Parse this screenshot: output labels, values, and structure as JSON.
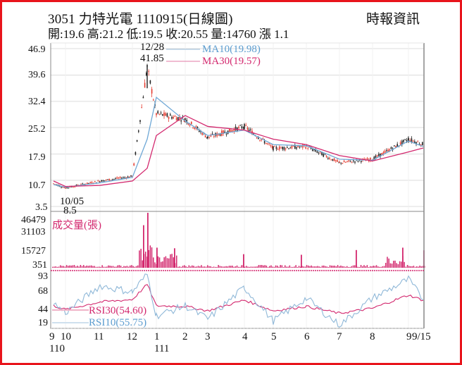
{
  "header": {
    "title": "3051  力特光電 1110915(日線圖)",
    "source": "時報資訊",
    "stats": "開:19.6 高:21.2 低:19.5 收:20.55 量:14760 漲 1.1"
  },
  "colors": {
    "border": "#e8141c",
    "ma10": "#6fa8d6",
    "ma30": "#d3286e",
    "volume": "#d3286e",
    "rsi30": "#d3286e",
    "rsi10": "#8fb8d8",
    "up_candle": "#e53a2e",
    "down_candle": "#222222",
    "grid": "#dcdcdc",
    "axis": "#888888"
  },
  "chart_data": [
    {
      "type": "candlestick",
      "title": "3051 力特光電 1110915(日線圖)",
      "ylabel": "",
      "y_ticks": [
        46.9,
        39.6,
        32.4,
        25.2,
        17.9,
        10.7,
        3.5
      ],
      "ylim": [
        3.5,
        46.9
      ],
      "grid": true,
      "x_ticks": [
        "9",
        "10",
        "11",
        "12",
        "1",
        "2",
        "3",
        "4",
        "5",
        "6",
        "7",
        "8",
        "9",
        "9/15"
      ],
      "x_subticks": {
        "110": "9",
        "111": "1"
      },
      "annotations": [
        {
          "label": "12/28",
          "value": "41.85",
          "type": "high"
        },
        {
          "label": "10/05",
          "value": "8.5",
          "type": "low"
        }
      ],
      "legend": [
        {
          "name": "MA10",
          "value": "19.98",
          "label": "MA10(19.98)"
        },
        {
          "name": "MA30",
          "value": "19.57",
          "label": "MA30(19.57)"
        }
      ],
      "approx_close_by_month": {
        "x": [
          "9",
          "10",
          "11",
          "12",
          "12/28",
          "1",
          "2",
          "3",
          "4",
          "5",
          "6",
          "7",
          "8",
          "9",
          "9/15"
        ],
        "close": [
          9.8,
          8.6,
          10.5,
          11.8,
          41.85,
          29.0,
          27.5,
          22.5,
          25.5,
          19.5,
          20.0,
          15.5,
          16.5,
          22.0,
          20.55
        ]
      },
      "series": [
        {
          "name": "MA10",
          "x": [
            "9",
            "10",
            "11",
            "12",
            "12/28",
            "1",
            "2",
            "3",
            "4",
            "5",
            "6",
            "7",
            "8",
            "9",
            "9/15"
          ],
          "values": [
            9.5,
            8.8,
            10.0,
            11.5,
            22.0,
            33.5,
            27.0,
            23.0,
            24.5,
            20.5,
            20.2,
            16.5,
            16.2,
            21.5,
            19.98
          ]
        },
        {
          "name": "MA30",
          "x": [
            "9",
            "10",
            "11",
            "12",
            "12/28",
            "1",
            "2",
            "3",
            "4",
            "5",
            "6",
            "7",
            "8",
            "9",
            "9/15"
          ],
          "values": [
            10.5,
            9.0,
            9.3,
            10.5,
            14.0,
            23.0,
            28.5,
            25.5,
            24.5,
            22.0,
            20.5,
            17.5,
            16.0,
            18.5,
            19.57
          ]
        }
      ]
    },
    {
      "type": "bar",
      "title": "成交量(張)",
      "y_ticks": [
        46479,
        31103,
        15727,
        351
      ],
      "ylim": [
        351,
        46479
      ],
      "x_ticks": [
        "9",
        "10",
        "11",
        "12",
        "1",
        "2",
        "3",
        "4",
        "5",
        "6",
        "7",
        "8",
        "9",
        "9/15"
      ],
      "peak": {
        "x": "12/28",
        "value": 46479
      },
      "approx_notable_bars": [
        {
          "x": "12 late",
          "value": 36000
        },
        {
          "x": "12/28",
          "value": 46479
        },
        {
          "x": "1 mid",
          "value": 17000
        },
        {
          "x": "4",
          "value": 11500
        },
        {
          "x": "6",
          "value": 11000
        },
        {
          "x": "7",
          "value": 15000
        },
        {
          "x": "8",
          "value": 17000
        },
        {
          "x": "9/15",
          "value": 14760
        }
      ]
    },
    {
      "type": "line",
      "title": "RSI",
      "y_ticks": [
        93,
        68,
        44,
        19
      ],
      "ylim": [
        19,
        93
      ],
      "legend": [
        {
          "name": "RSI30",
          "value": "54.60",
          "label": "RSI30(54.60)"
        },
        {
          "name": "RSI10",
          "value": "55.75",
          "label": "RSI10(55.75)"
        }
      ],
      "x_ticks": [
        "9",
        "10",
        "11",
        "12",
        "1",
        "2",
        "3",
        "4",
        "5",
        "6",
        "7",
        "8",
        "9",
        "9/15"
      ],
      "series": [
        {
          "name": "RSI30",
          "x": [
            "9",
            "10",
            "11",
            "12",
            "12/28",
            "1",
            "2",
            "3",
            "4",
            "5",
            "6",
            "7",
            "8",
            "9",
            "9/15"
          ],
          "values": [
            46,
            40,
            52,
            56,
            80,
            46,
            45,
            38,
            55,
            38,
            45,
            34,
            42,
            63,
            54.6
          ]
        },
        {
          "name": "RSI10",
          "x": [
            "9",
            "10",
            "11",
            "12",
            "12/28",
            "1",
            "2",
            "3",
            "4",
            "5",
            "6",
            "7",
            "8",
            "9",
            "9/15"
          ],
          "values": [
            50,
            35,
            78,
            68,
            96,
            30,
            46,
            25,
            75,
            22,
            58,
            15,
            58,
            88,
            55.75
          ]
        }
      ]
    }
  ],
  "axis": {
    "price_ticks": [
      "46.9",
      "39.6",
      "32.4",
      "25.2",
      "17.9",
      "10.7",
      "3.5"
    ],
    "volume_ticks": [
      "46479",
      "31103",
      "15727",
      "351"
    ],
    "rsi_ticks": [
      "93",
      "68",
      "44",
      "19"
    ],
    "month_labels": [
      "9",
      "10",
      "11",
      "12",
      "1",
      "2",
      "3",
      "4",
      "5",
      "6",
      "7",
      "8",
      "9",
      "9/15"
    ],
    "year_labels": [
      "110",
      "111"
    ],
    "volume_title": "成交量(張)",
    "high_date": "12/28",
    "high_value": "41.85",
    "low_date": "10/05",
    "low_value": "8.5",
    "ma10_label": "MA10(19.98)",
    "ma30_label": "MA30(19.57)",
    "rsi30_label": "RSI30(54.60)",
    "rsi10_label": "RSI10(55.75)"
  }
}
